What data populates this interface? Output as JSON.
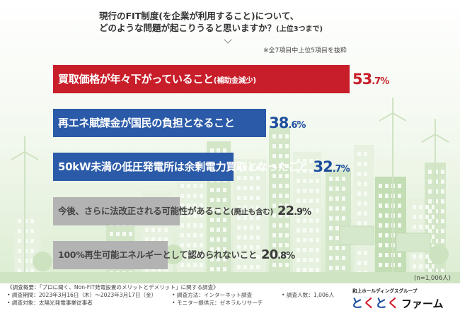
{
  "question": {
    "line1": "現行のFIT制度(を企業が利用すること)について、",
    "line2_main": "どのような問題が起こりうると思いますか？",
    "line2_note": "(上位3つまで)"
  },
  "note_top": "※全7項目中上位5項目を抜粋",
  "colors": {
    "red": "#c81e2a",
    "blue": "#2a5aa8",
    "gray": "#b3b3b3",
    "label_white": "#ffffff",
    "label_dark": "#444444",
    "value_dark": "#3a3a3a",
    "value_blue": "#1d4e9e"
  },
  "chart_data": {
    "type": "bar",
    "orientation": "horizontal",
    "unit": "%",
    "categories": [
      "買取価格が年々下がっていること(補助金減少)",
      "再エネ賦課金が国民の負担となること",
      "50kW未満の低圧発電所は余剰電力買取となったこと",
      "今後、さらに法改正される可能性があること(廃止も含む)",
      "100%再生可能エネルギーとして認められないこと"
    ],
    "values": [
      53.7,
      38.6,
      32.7,
      22.9,
      20.8
    ],
    "value_labels": [
      {
        "int": "53",
        "dec": ".7",
        "pct": "%"
      },
      {
        "int": "38",
        "dec": ".6",
        "pct": "%"
      },
      {
        "int": "32",
        "dec": ".7",
        "pct": "%"
      },
      {
        "int": "22",
        "dec": ".9",
        "pct": "%"
      },
      {
        "int": "20",
        "dec": ".8",
        "pct": "%"
      }
    ],
    "label_main": [
      "買取価格が年々下がっていること",
      "再エネ賦課金が国民の負担となること",
      "50kW未満の低圧発電所は余剰電力買取となったこと",
      "今後、さらに法改正される可能性があること",
      "100%再生可能エネルギーとして認められないこと"
    ],
    "label_paren": [
      "(補助金減少)",
      "",
      "",
      "(廃止も含む)",
      ""
    ],
    "bar_color_keys": [
      "red",
      "blue",
      "blue",
      "gray",
      "gray"
    ],
    "xlim": [
      0,
      53.7
    ],
    "grid": false
  },
  "sample_size": "(n=1,006人)",
  "footer": {
    "overview": "《調査概要：「プロに聞く、Non-FIT発電設置のメリットとデメリット」に関する調査》",
    "period": "• 調査期間：2023年3月16日（木）〜2023年3月17日（金）",
    "method": "• 調査方法：インターネット調査",
    "people": "• 調査人数：1,006人",
    "target": "• 調査対象：太陽光発電事業従事者",
    "monitor": "• モニター提供元：ゼネラルリサーチ"
  },
  "brand": {
    "group": "和上ホールディングスグループ",
    "logo_kana": [
      "と",
      "く",
      "と",
      "く"
    ],
    "logo_colors": [
      "#1d4e9e",
      "#d21f2b",
      "#1d4e9e",
      "#d21f2b"
    ],
    "logo_word": "ファーム"
  }
}
